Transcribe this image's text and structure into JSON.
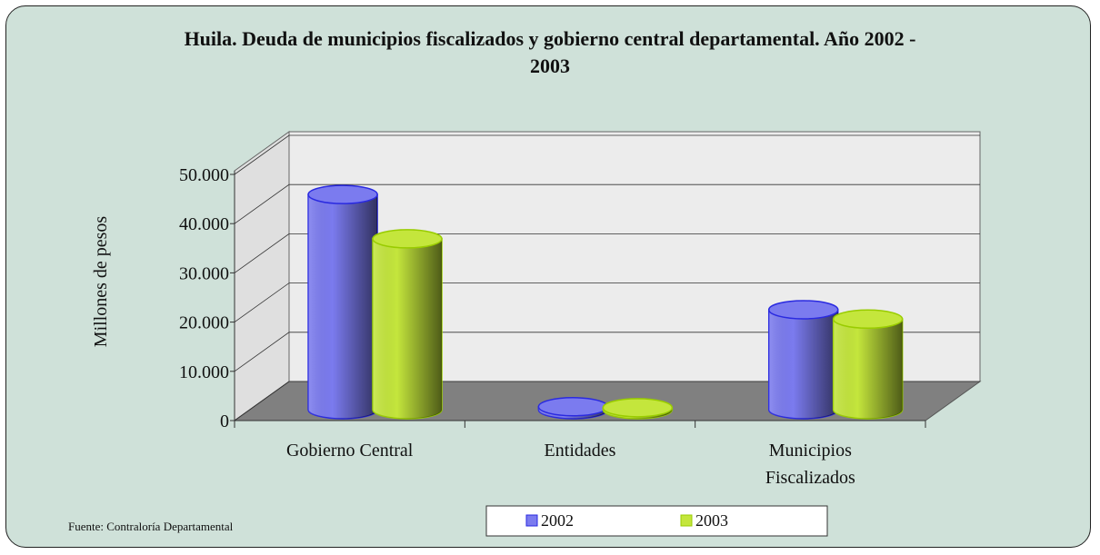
{
  "chart_data": {
    "type": "bar3d",
    "title": "Huila. Deuda de municipios fiscalizados y gobierno central departamental. Año 2002 - 2003",
    "y_label": "Millones de pesos",
    "categories": [
      "Gobierno Central",
      "Entidades",
      "Municipios Fiscalizados"
    ],
    "series": [
      {
        "name": "2002",
        "color": "#7b7bef",
        "stroke": "#2a2ae0",
        "values": [
          43700,
          600,
          20300
        ]
      },
      {
        "name": "2003",
        "color": "#c4e63c",
        "stroke": "#99cc00",
        "values": [
          34700,
          400,
          18400
        ]
      }
    ],
    "ylim": [
      0,
      50000
    ],
    "yticks": [
      0,
      {
        "value": 10000,
        "label": "10.000"
      },
      {
        "value": 20000,
        "label": "20.000"
      },
      {
        "value": 30000,
        "label": "30.000"
      },
      {
        "value": 40000,
        "label": "40.000"
      },
      {
        "value": 50000,
        "label": "50.000"
      }
    ],
    "grid": true,
    "legend": "bottom",
    "source": "Fuente: Contraloría Departamental"
  }
}
